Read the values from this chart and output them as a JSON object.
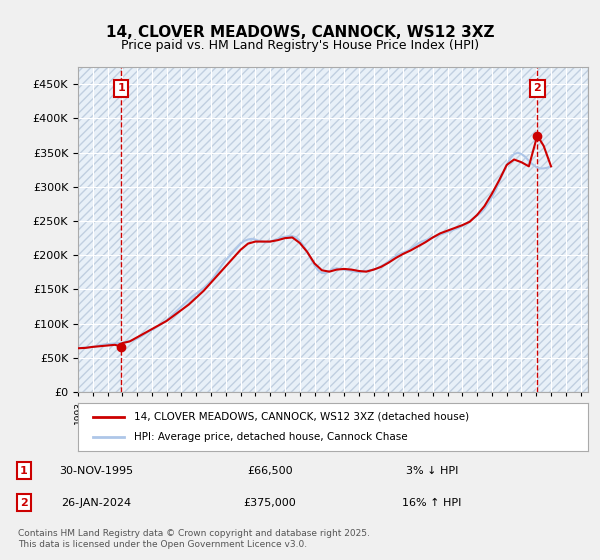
{
  "title": "14, CLOVER MEADOWS, CANNOCK, WS12 3XZ",
  "subtitle": "Price paid vs. HM Land Registry's House Price Index (HPI)",
  "ylim": [
    0,
    475000
  ],
  "yticks": [
    0,
    50000,
    100000,
    150000,
    200000,
    250000,
    300000,
    350000,
    400000,
    450000
  ],
  "ytick_labels": [
    "£0",
    "£50K",
    "£100K",
    "£150K",
    "£200K",
    "£250K",
    "£300K",
    "£350K",
    "£400K",
    "£450K"
  ],
  "xlim_start": 1993.0,
  "xlim_end": 2027.5,
  "hpi_color": "#aec6e8",
  "price_color": "#cc0000",
  "bg_color": "#dce9f5",
  "plot_bg": "#e8f0f8",
  "grid_color": "#ffffff",
  "annotation_box_color": "#cc0000",
  "legend_label_red": "14, CLOVER MEADOWS, CANNOCK, WS12 3XZ (detached house)",
  "legend_label_blue": "HPI: Average price, detached house, Cannock Chase",
  "footnote": "Contains HM Land Registry data © Crown copyright and database right 2025.\nThis data is licensed under the Open Government Licence v3.0.",
  "sale1_date": "30-NOV-1995",
  "sale1_price": "£66,500",
  "sale1_note": "3% ↓ HPI",
  "sale2_date": "26-JAN-2024",
  "sale2_price": "£375,000",
  "sale2_note": "16% ↑ HPI",
  "sale1_x": 1995.92,
  "sale1_y": 66500,
  "sale2_x": 2024.07,
  "sale2_y": 375000,
  "hpi_x": [
    1993,
    1993.25,
    1993.5,
    1993.75,
    1994,
    1994.25,
    1994.5,
    1994.75,
    1995,
    1995.25,
    1995.5,
    1995.75,
    1996,
    1996.25,
    1996.5,
    1996.75,
    1997,
    1997.25,
    1997.5,
    1997.75,
    1998,
    1998.25,
    1998.5,
    1998.75,
    1999,
    1999.25,
    1999.5,
    1999.75,
    2000,
    2000.25,
    2000.5,
    2000.75,
    2001,
    2001.25,
    2001.5,
    2001.75,
    2002,
    2002.25,
    2002.5,
    2002.75,
    2003,
    2003.25,
    2003.5,
    2003.75,
    2004,
    2004.25,
    2004.5,
    2004.75,
    2005,
    2005.25,
    2005.5,
    2005.75,
    2006,
    2006.25,
    2006.5,
    2006.75,
    2007,
    2007.25,
    2007.5,
    2007.75,
    2008,
    2008.25,
    2008.5,
    2008.75,
    2009,
    2009.25,
    2009.5,
    2009.75,
    2010,
    2010.25,
    2010.5,
    2010.75,
    2011,
    2011.25,
    2011.5,
    2011.75,
    2012,
    2012.25,
    2012.5,
    2012.75,
    2013,
    2013.25,
    2013.5,
    2013.75,
    2014,
    2014.25,
    2014.5,
    2014.75,
    2015,
    2015.25,
    2015.5,
    2015.75,
    2016,
    2016.25,
    2016.5,
    2016.75,
    2017,
    2017.25,
    2017.5,
    2017.75,
    2018,
    2018.25,
    2018.5,
    2018.75,
    2019,
    2019.25,
    2019.5,
    2019.75,
    2020,
    2020.25,
    2020.5,
    2020.75,
    2021,
    2021.25,
    2021.5,
    2021.75,
    2022,
    2022.25,
    2022.5,
    2022.75,
    2023,
    2023.25,
    2023.5,
    2023.75,
    2024,
    2024.25,
    2024.5,
    2024.75,
    2025
  ],
  "hpi_y": [
    64000,
    64500,
    65000,
    65500,
    66000,
    67000,
    68500,
    69500,
    70000,
    70500,
    71000,
    71500,
    72000,
    73000,
    74500,
    76000,
    78000,
    81000,
    84500,
    88000,
    91000,
    94000,
    97500,
    101000,
    105000,
    110000,
    115000,
    120000,
    125000,
    130000,
    135000,
    140000,
    144000,
    148000,
    152000,
    157000,
    163000,
    170000,
    178000,
    186000,
    193000,
    199000,
    205000,
    211000,
    217000,
    221000,
    223000,
    224000,
    223000,
    221000,
    220000,
    219000,
    220000,
    222000,
    224000,
    226000,
    227000,
    228000,
    228000,
    226000,
    221000,
    214000,
    205000,
    195000,
    185000,
    178000,
    174000,
    174000,
    177000,
    180000,
    181000,
    180000,
    179000,
    178000,
    177000,
    176000,
    175000,
    176000,
    177000,
    178000,
    179000,
    181000,
    184000,
    187000,
    191000,
    195000,
    199000,
    202000,
    204000,
    206000,
    209000,
    213000,
    217000,
    220000,
    222000,
    224000,
    226000,
    228000,
    230000,
    232000,
    234000,
    236000,
    238000,
    240000,
    243000,
    246000,
    250000,
    254000,
    258000,
    262000,
    268000,
    276000,
    285000,
    295000,
    308000,
    320000,
    332000,
    342000,
    348000,
    350000,
    348000,
    344000,
    338000,
    333000,
    329000,
    327000,
    327000,
    328000,
    330000
  ],
  "price_x": [
    1993,
    1993.5,
    1994,
    1994.5,
    1995,
    1995.5,
    1995.92,
    1996,
    1996.5,
    1997,
    1997.5,
    1998,
    1998.5,
    1999,
    1999.5,
    2000,
    2000.5,
    2001,
    2001.5,
    2002,
    2002.5,
    2003,
    2003.5,
    2004,
    2004.5,
    2005,
    2005.5,
    2006,
    2006.5,
    2007,
    2007.5,
    2008,
    2008.5,
    2009,
    2009.5,
    2010,
    2010.5,
    2011,
    2011.5,
    2012,
    2012.5,
    2013,
    2013.5,
    2014,
    2014.5,
    2015,
    2015.5,
    2016,
    2016.5,
    2017,
    2017.5,
    2018,
    2018.5,
    2019,
    2019.5,
    2020,
    2020.5,
    2021,
    2021.5,
    2022,
    2022.5,
    2023,
    2023.5,
    2024.07,
    2024.5,
    2025
  ],
  "price_y": [
    64000,
    64500,
    66000,
    67000,
    68000,
    69000,
    66500,
    71500,
    74000,
    80000,
    86000,
    92000,
    98000,
    104000,
    112000,
    120000,
    128000,
    138000,
    148000,
    160000,
    172000,
    184000,
    196000,
    208000,
    217000,
    220000,
    220000,
    220000,
    222000,
    225000,
    226000,
    218000,
    205000,
    188000,
    178000,
    176000,
    179000,
    180000,
    179000,
    177000,
    176000,
    179000,
    183000,
    189000,
    196000,
    202000,
    207000,
    213000,
    219000,
    226000,
    232000,
    236000,
    240000,
    244000,
    249000,
    259000,
    272000,
    290000,
    310000,
    332000,
    340000,
    336000,
    330000,
    375000,
    360000,
    330000
  ]
}
